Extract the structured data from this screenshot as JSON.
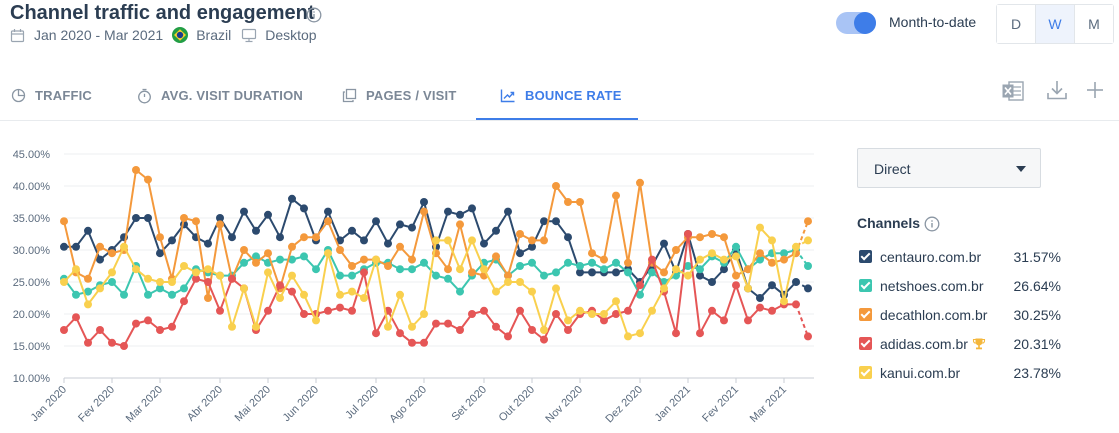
{
  "header": {
    "title": "Channel traffic and engagement",
    "date_range": "Jan 2020 - Mar 2021",
    "country": "Brazil",
    "device": "Desktop",
    "toggle_label": "Month-to-date",
    "granularity": [
      "D",
      "W",
      "M"
    ],
    "granularity_selected": "W"
  },
  "tabs": [
    {
      "label": "TRAFFIC",
      "icon": "pie-chart-icon",
      "active": false
    },
    {
      "label": "AVG. VISIT DURATION",
      "icon": "stopwatch-icon",
      "active": false
    },
    {
      "label": "PAGES / VISIT",
      "icon": "pages-icon",
      "active": false
    },
    {
      "label": "BOUNCE RATE",
      "icon": "trend-icon",
      "active": true
    }
  ],
  "tools": [
    "excel-export-icon",
    "download-icon",
    "plus-icon"
  ],
  "dropdown": {
    "value": "Direct"
  },
  "channels": {
    "title": "Channels",
    "items": [
      {
        "name": "centauro.com.br",
        "value": "31.57%",
        "color": "#2c4a6e"
      },
      {
        "name": "netshoes.com.br",
        "value": "26.64%",
        "color": "#3cc6b0"
      },
      {
        "name": "decathlon.com.br",
        "value": "30.25%",
        "color": "#f4993c"
      },
      {
        "name": "adidas.com.br",
        "value": "20.31%",
        "color": "#e55656",
        "trophy": true
      },
      {
        "name": "kanui.com.br",
        "value": "23.78%",
        "color": "#f9d04e"
      }
    ]
  },
  "chart_data": {
    "type": "line",
    "x": [
      "2020-01-06",
      "2020-01-13",
      "2020-01-20",
      "2020-01-27",
      "2020-02-03",
      "2020-02-10",
      "2020-02-17",
      "2020-02-24",
      "2020-03-02",
      "2020-03-09",
      "2020-03-16",
      "2020-03-23",
      "2020-03-30",
      "2020-04-06",
      "2020-04-13",
      "2020-04-20",
      "2020-04-27",
      "2020-05-04",
      "2020-05-11",
      "2020-05-18",
      "2020-05-25",
      "2020-06-01",
      "2020-06-08",
      "2020-06-15",
      "2020-06-22",
      "2020-06-29",
      "2020-07-06",
      "2020-07-13",
      "2020-07-20",
      "2020-07-27",
      "2020-08-03",
      "2020-08-10",
      "2020-08-17",
      "2020-08-24",
      "2020-08-31",
      "2020-09-07",
      "2020-09-14",
      "2020-09-21",
      "2020-09-28",
      "2020-10-05",
      "2020-10-12",
      "2020-10-19",
      "2020-10-26",
      "2020-11-02",
      "2020-11-09",
      "2020-11-16",
      "2020-11-23",
      "2020-11-30",
      "2020-12-07",
      "2020-12-14",
      "2020-12-21",
      "2020-12-28",
      "2021-01-04",
      "2021-01-11",
      "2021-01-18",
      "2021-01-25",
      "2021-02-01",
      "2021-02-08",
      "2021-02-15",
      "2021-02-22",
      "2021-03-01",
      "2021-03-08",
      "2021-03-15"
    ],
    "x_tick_labels": [
      "Jan 2020",
      "Fev 2020",
      "Mar 2020",
      "Abr 2020",
      "Mai 2020",
      "Jun 2020",
      "Jul 2020",
      "Ago 2020",
      "Set 2020",
      "Out 2020",
      "Nov 2020",
      "Dez 2020",
      "Jan 2021",
      "Fev 2021",
      "Mar 2021"
    ],
    "y_tick_labels": [
      "10.00%",
      "15.00%",
      "20.00%",
      "25.00%",
      "30.00%",
      "35.00%",
      "40.00%",
      "45.00%"
    ],
    "ylim": [
      10,
      45
    ],
    "grid": true,
    "partial_last_point": true,
    "series": [
      {
        "name": "centauro.com.br",
        "color": "#2c4a6e",
        "values": [
          30.5,
          30.5,
          33.0,
          28.5,
          30.0,
          32.0,
          35.0,
          35.0,
          29.5,
          31.5,
          34.0,
          32.0,
          31.0,
          35.0,
          32.0,
          36.0,
          33.0,
          35.5,
          32.0,
          38.0,
          36.5,
          31.5,
          36.0,
          31.5,
          33.0,
          31.5,
          34.5,
          31.0,
          34.0,
          33.5,
          37.5,
          30.5,
          36.0,
          35.5,
          36.5,
          31.0,
          33.0,
          36.0,
          29.5,
          30.5,
          34.5,
          34.5,
          32.0,
          26.5,
          26.5,
          26.5,
          26.5,
          27.0,
          25.0,
          27.5,
          31.0,
          26.5,
          32.5,
          26.0,
          25.0,
          27.0,
          30.0,
          24.0,
          22.5,
          24.5,
          23.0,
          25.0,
          24.0
        ]
      },
      {
        "name": "netshoes.com.br",
        "color": "#3cc6b0",
        "values": [
          25.5,
          23.0,
          23.5,
          24.5,
          25.0,
          23.0,
          27.5,
          23.0,
          24.0,
          23.0,
          24.0,
          27.0,
          26.5,
          26.0,
          26.0,
          28.0,
          29.0,
          28.0,
          28.5,
          28.5,
          29.0,
          27.0,
          30.0,
          26.0,
          26.0,
          27.0,
          28.0,
          28.0,
          27.0,
          27.0,
          28.0,
          26.0,
          25.5,
          23.5,
          26.0,
          28.0,
          28.5,
          26.0,
          27.5,
          28.0,
          26.0,
          26.5,
          28.0,
          27.5,
          28.0,
          27.0,
          28.0,
          26.5,
          23.0,
          26.5,
          25.0,
          26.0,
          27.5,
          27.0,
          29.0,
          28.0,
          30.5,
          27.0,
          28.5,
          29.5,
          29.5,
          30.0,
          27.5
        ]
      },
      {
        "name": "decathlon.com.br",
        "color": "#f4993c",
        "values": [
          34.5,
          26.5,
          25.5,
          30.5,
          29.5,
          30.0,
          42.5,
          41.0,
          32.0,
          25.5,
          35.0,
          34.5,
          22.5,
          34.0,
          25.5,
          30.0,
          28.0,
          29.5,
          24.0,
          30.5,
          32.0,
          32.0,
          34.5,
          30.0,
          27.5,
          28.5,
          28.5,
          27.5,
          30.5,
          28.5,
          36.0,
          29.5,
          27.0,
          34.0,
          26.5,
          26.0,
          29.0,
          26.0,
          32.5,
          31.5,
          31.5,
          40.0,
          37.5,
          37.5,
          29.5,
          28.5,
          38.5,
          28.0,
          40.5,
          28.0,
          26.5,
          30.0,
          32.0,
          32.0,
          32.5,
          32.0,
          26.0,
          27.0,
          29.5,
          28.0,
          28.5,
          29.5,
          34.5
        ]
      },
      {
        "name": "adidas.com.br",
        "color": "#e55656",
        "values": [
          17.5,
          19.5,
          15.5,
          17.5,
          15.5,
          15.0,
          18.5,
          19.0,
          17.5,
          18.0,
          22.0,
          25.5,
          25.0,
          20.5,
          25.5,
          24.0,
          17.5,
          20.5,
          24.5,
          23.5,
          20.0,
          20.0,
          20.5,
          21.0,
          20.5,
          26.5,
          17.0,
          20.5,
          17.0,
          15.5,
          15.5,
          18.5,
          18.5,
          17.5,
          20.0,
          20.5,
          18.0,
          16.5,
          20.5,
          17.5,
          16.0,
          20.0,
          17.5,
          20.0,
          20.5,
          19.0,
          20.0,
          20.5,
          24.5,
          28.5,
          23.5,
          17.0,
          32.5,
          17.0,
          20.5,
          19.0,
          24.5,
          19.0,
          21.0,
          20.5,
          21.5,
          21.5,
          16.5
        ]
      },
      {
        "name": "kanui.com.br",
        "color": "#f9d04e",
        "values": [
          25.0,
          27.0,
          21.5,
          24.0,
          26.5,
          30.5,
          27.0,
          25.5,
          25.0,
          25.0,
          27.5,
          26.5,
          27.0,
          26.0,
          18.0,
          24.0,
          18.0,
          26.5,
          22.5,
          26.0,
          23.0,
          19.0,
          29.5,
          23.0,
          23.5,
          22.5,
          28.5,
          18.0,
          23.0,
          18.0,
          20.0,
          31.5,
          31.5,
          27.0,
          31.5,
          27.0,
          23.5,
          25.0,
          25.0,
          23.5,
          17.5,
          24.0,
          19.0,
          20.5,
          20.0,
          20.0,
          22.0,
          16.5,
          17.0,
          20.5,
          24.0,
          27.0,
          26.0,
          28.5,
          29.5,
          28.5,
          29.0,
          24.0,
          33.5,
          31.5,
          22.0,
          30.5,
          31.5
        ]
      }
    ]
  }
}
